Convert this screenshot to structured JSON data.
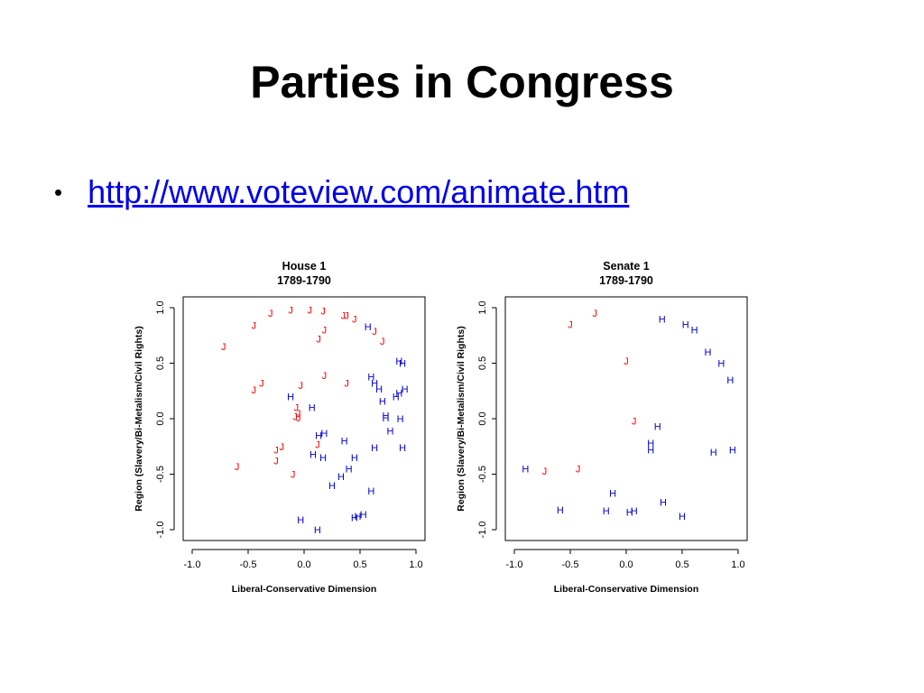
{
  "slide": {
    "title": "Parties in Congress",
    "bullet": "http://www.voteview.com/animate.htm"
  },
  "colors": {
    "J": "#ff0000",
    "H": "#0000cc"
  },
  "chart_data": [
    {
      "type": "scatter",
      "title": "House 1",
      "subtitle": "1789-1790",
      "xlabel": "Liberal-Conservative Dimension",
      "ylabel": "Region (Slavery/Bi-Metalism/Civil Rights)",
      "xlim": [
        -1.0,
        1.0
      ],
      "ylim": [
        -1.0,
        1.0
      ],
      "xticks": [
        "-1.0",
        "-0.5",
        "0.0",
        "0.5",
        "1.0"
      ],
      "yticks": [
        "-1.0",
        "-0.5",
        "0.0",
        "0.5",
        "1.0"
      ],
      "grid": false,
      "points": [
        {
          "x": -0.72,
          "y": 0.65,
          "label": "J"
        },
        {
          "x": -0.45,
          "y": 0.84,
          "label": "J"
        },
        {
          "x": -0.3,
          "y": 0.95,
          "label": "J"
        },
        {
          "x": -0.12,
          "y": 0.98,
          "label": "J"
        },
        {
          "x": 0.05,
          "y": 0.98,
          "label": "J"
        },
        {
          "x": 0.17,
          "y": 0.97,
          "label": "J"
        },
        {
          "x": 0.35,
          "y": 0.93,
          "label": "J"
        },
        {
          "x": 0.38,
          "y": 0.93,
          "label": "J"
        },
        {
          "x": 0.45,
          "y": 0.9,
          "label": "J"
        },
        {
          "x": 0.18,
          "y": 0.8,
          "label": "J"
        },
        {
          "x": 0.13,
          "y": 0.72,
          "label": "J"
        },
        {
          "x": 0.63,
          "y": 0.79,
          "label": "J"
        },
        {
          "x": 0.7,
          "y": 0.7,
          "label": "J"
        },
        {
          "x": 0.18,
          "y": 0.39,
          "label": "J"
        },
        {
          "x": -0.38,
          "y": 0.32,
          "label": "J"
        },
        {
          "x": -0.45,
          "y": 0.26,
          "label": "J"
        },
        {
          "x": 0.38,
          "y": 0.32,
          "label": "J"
        },
        {
          "x": -0.03,
          "y": 0.3,
          "label": "J"
        },
        {
          "x": -0.07,
          "y": 0.1,
          "label": "J"
        },
        {
          "x": -0.05,
          "y": 0.05,
          "label": "J"
        },
        {
          "x": -0.08,
          "y": 0.02,
          "label": "J"
        },
        {
          "x": -0.05,
          "y": 0.01,
          "label": "J"
        },
        {
          "x": -0.2,
          "y": -0.25,
          "label": "J"
        },
        {
          "x": -0.25,
          "y": -0.28,
          "label": "J"
        },
        {
          "x": -0.25,
          "y": -0.38,
          "label": "J"
        },
        {
          "x": 0.12,
          "y": -0.23,
          "label": "J"
        },
        {
          "x": -0.6,
          "y": -0.43,
          "label": "J"
        },
        {
          "x": -0.1,
          "y": -0.5,
          "label": "J"
        },
        {
          "x": 0.57,
          "y": 0.83,
          "label": "H"
        },
        {
          "x": 0.85,
          "y": 0.52,
          "label": "H"
        },
        {
          "x": 0.88,
          "y": 0.5,
          "label": "H"
        },
        {
          "x": 0.6,
          "y": 0.38,
          "label": "H"
        },
        {
          "x": 0.63,
          "y": 0.32,
          "label": "H"
        },
        {
          "x": 0.67,
          "y": 0.27,
          "label": "H"
        },
        {
          "x": 0.9,
          "y": 0.27,
          "label": "H"
        },
        {
          "x": 0.85,
          "y": 0.23,
          "label": "H"
        },
        {
          "x": 0.82,
          "y": 0.2,
          "label": "H"
        },
        {
          "x": -0.12,
          "y": 0.2,
          "label": "H"
        },
        {
          "x": 0.7,
          "y": 0.16,
          "label": "H"
        },
        {
          "x": 0.07,
          "y": 0.1,
          "label": "H"
        },
        {
          "x": 0.73,
          "y": 0.03,
          "label": "H"
        },
        {
          "x": 0.73,
          "y": 0.01,
          "label": "H"
        },
        {
          "x": 0.86,
          "y": 0.0,
          "label": "H"
        },
        {
          "x": 0.77,
          "y": -0.11,
          "label": "H"
        },
        {
          "x": 0.18,
          "y": -0.13,
          "label": "H"
        },
        {
          "x": 0.13,
          "y": -0.15,
          "label": "H"
        },
        {
          "x": 0.36,
          "y": -0.2,
          "label": "H"
        },
        {
          "x": 0.63,
          "y": -0.26,
          "label": "H"
        },
        {
          "x": 0.88,
          "y": -0.26,
          "label": "H"
        },
        {
          "x": 0.08,
          "y": -0.32,
          "label": "H"
        },
        {
          "x": 0.17,
          "y": -0.35,
          "label": "H"
        },
        {
          "x": 0.45,
          "y": -0.35,
          "label": "H"
        },
        {
          "x": 0.4,
          "y": -0.45,
          "label": "H"
        },
        {
          "x": 0.33,
          "y": -0.52,
          "label": "H"
        },
        {
          "x": 0.25,
          "y": -0.6,
          "label": "H"
        },
        {
          "x": 0.6,
          "y": -0.65,
          "label": "H"
        },
        {
          "x": 0.53,
          "y": -0.86,
          "label": "H"
        },
        {
          "x": 0.48,
          "y": -0.88,
          "label": "H"
        },
        {
          "x": 0.45,
          "y": -0.89,
          "label": "H"
        },
        {
          "x": -0.03,
          "y": -0.91,
          "label": "H"
        },
        {
          "x": 0.12,
          "y": -1.0,
          "label": "H"
        }
      ]
    },
    {
      "type": "scatter",
      "title": "Senate 1",
      "subtitle": "1789-1790",
      "xlabel": "Liberal-Conservative Dimension",
      "ylabel": "Region (Slavery/Bi-Metalism/Civil Rights)",
      "xlim": [
        -1.0,
        1.0
      ],
      "ylim": [
        -1.0,
        1.0
      ],
      "xticks": [
        "-1.0",
        "-0.5",
        "0.0",
        "0.5",
        "1.0"
      ],
      "yticks": [
        "-1.0",
        "-0.5",
        "0.0",
        "0.5",
        "1.0"
      ],
      "grid": false,
      "points": [
        {
          "x": -0.28,
          "y": 0.95,
          "label": "J"
        },
        {
          "x": -0.5,
          "y": 0.85,
          "label": "J"
        },
        {
          "x": 0.0,
          "y": 0.52,
          "label": "J"
        },
        {
          "x": 0.07,
          "y": -0.02,
          "label": "J"
        },
        {
          "x": -0.73,
          "y": -0.47,
          "label": "J"
        },
        {
          "x": -0.43,
          "y": -0.45,
          "label": "J"
        },
        {
          "x": 0.32,
          "y": 0.9,
          "label": "H"
        },
        {
          "x": 0.53,
          "y": 0.85,
          "label": "H"
        },
        {
          "x": 0.61,
          "y": 0.8,
          "label": "H"
        },
        {
          "x": 0.73,
          "y": 0.6,
          "label": "H"
        },
        {
          "x": 0.85,
          "y": 0.5,
          "label": "H"
        },
        {
          "x": 0.93,
          "y": 0.35,
          "label": "H"
        },
        {
          "x": 0.28,
          "y": -0.07,
          "label": "H"
        },
        {
          "x": 0.22,
          "y": -0.22,
          "label": "H"
        },
        {
          "x": 0.22,
          "y": -0.28,
          "label": "H"
        },
        {
          "x": 0.78,
          "y": -0.3,
          "label": "H"
        },
        {
          "x": 0.95,
          "y": -0.28,
          "label": "H"
        },
        {
          "x": -0.9,
          "y": -0.45,
          "label": "H"
        },
        {
          "x": -0.12,
          "y": -0.67,
          "label": "H"
        },
        {
          "x": 0.33,
          "y": -0.75,
          "label": "H"
        },
        {
          "x": -0.59,
          "y": -0.82,
          "label": "H"
        },
        {
          "x": -0.18,
          "y": -0.83,
          "label": "H"
        },
        {
          "x": 0.03,
          "y": -0.84,
          "label": "H"
        },
        {
          "x": 0.07,
          "y": -0.83,
          "label": "H"
        },
        {
          "x": 0.5,
          "y": -0.88,
          "label": "H"
        }
      ]
    }
  ]
}
